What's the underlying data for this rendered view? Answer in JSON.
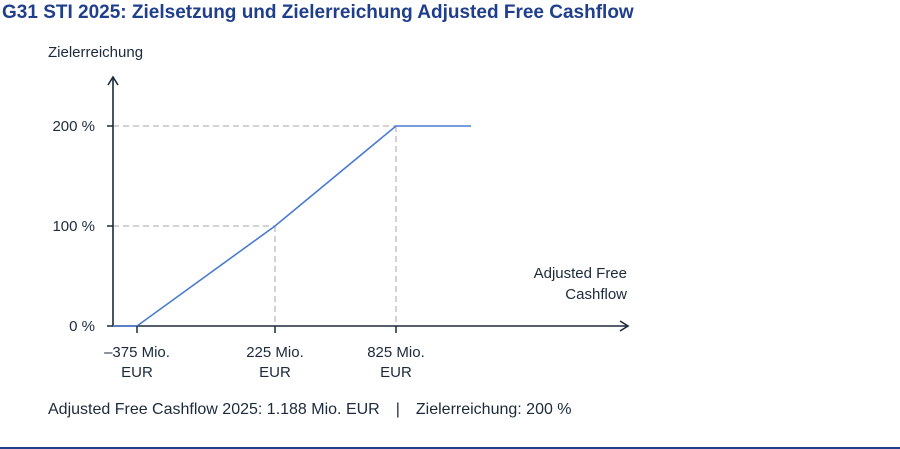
{
  "chart_data": {
    "type": "line",
    "title": "G31 STI 2025: Zielsetzung und Zielerreichung Adjusted Free Cashflow",
    "ylabel": "Zielerreichung",
    "xlabel": [
      "Adjusted Free",
      "Cashflow"
    ],
    "x_ticks": [
      {
        "value": -375,
        "label": [
          "–375 Mio.",
          "EUR"
        ]
      },
      {
        "value": 225,
        "label": [
          "225 Mio.",
          "EUR"
        ]
      },
      {
        "value": 825,
        "label": [
          "825 Mio.",
          "EUR"
        ]
      }
    ],
    "y_ticks": [
      {
        "value": 0,
        "label": "0 %"
      },
      {
        "value": 100,
        "label": "100 %"
      },
      {
        "value": 200,
        "label": "200 %"
      }
    ],
    "series": [
      {
        "x": [
          -375,
          225,
          825
        ],
        "y": [
          0,
          100,
          200
        ]
      }
    ],
    "line_color": "#4a7bd0",
    "guide_color": "#b9b9b9",
    "axis_color": "#1c2a3a",
    "grid": false,
    "footnote": {
      "value_text": "Adjusted Free Cashflow 2025: 1.188 Mio. EUR",
      "separator": "|",
      "achievement_text": "Zielerreichung: 200 %"
    }
  }
}
